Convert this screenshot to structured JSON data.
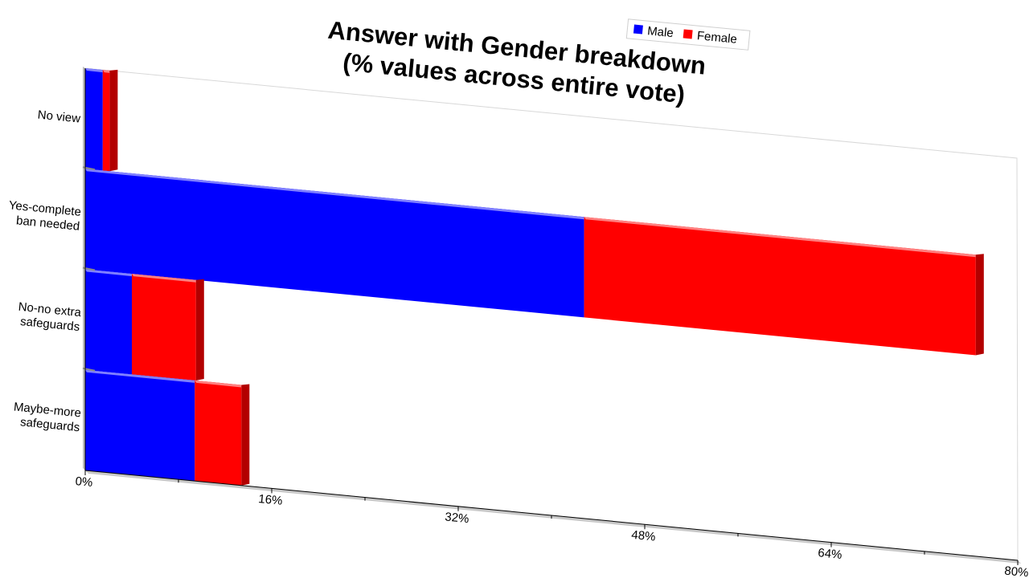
{
  "chart_data": {
    "type": "bar",
    "orientation": "horizontal",
    "stacked": true,
    "title": [
      "Answer with Gender breakdown",
      "(% values across entire vote)"
    ],
    "categories": [
      "No view",
      "Yes-complete ban needed",
      "No-no extra safeguards",
      "Maybe-more safeguards"
    ],
    "category_label_lines": [
      [
        "No view"
      ],
      [
        "Yes-complete",
        "ban needed"
      ],
      [
        "No-no extra",
        "safeguards"
      ],
      [
        "Maybe-more",
        "safeguards"
      ]
    ],
    "series": [
      {
        "name": "Male",
        "color": "#0000ff",
        "values": [
          1.5,
          42.8,
          4.0,
          9.4
        ]
      },
      {
        "name": "Female",
        "color": "#ff0000",
        "values": [
          0.6,
          33.6,
          5.5,
          4.0
        ]
      }
    ],
    "xlim": [
      0,
      80
    ],
    "x_ticks": [
      "0%",
      "16%",
      "32%",
      "48%",
      "64%",
      "80%"
    ],
    "legend_position": "top-right",
    "grid": false
  }
}
